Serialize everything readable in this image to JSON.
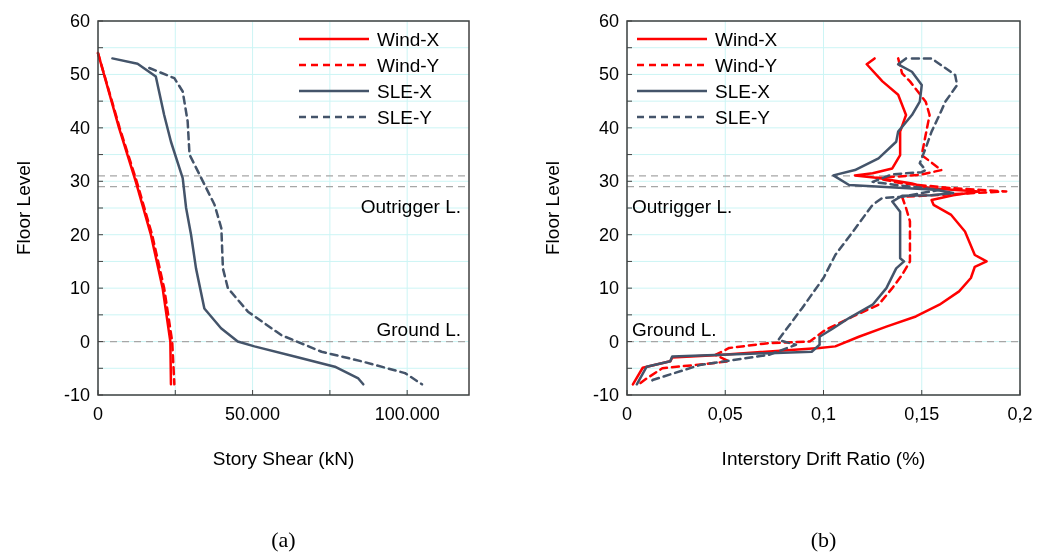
{
  "chart_data": [
    {
      "type": "line",
      "xlabel": "Story Shear (kN)",
      "ylabel": "Floor Level",
      "annotations": [
        "(a)"
      ],
      "legend": "top right",
      "grid": true,
      "xlim": [
        0,
        120000
      ],
      "xticks": [
        0,
        {
          "value": 25000,
          "label": null
        },
        {
          "value": 50000,
          "label": "50.000"
        },
        {
          "value": 75000,
          "label": null
        },
        {
          "value": 100000,
          "label": "100.000"
        }
      ],
      "ylim": [
        -10,
        60
      ],
      "yticks": [
        -10,
        {
          "value": -5,
          "label": null
        },
        0,
        {
          "value": 5,
          "label": null
        },
        10,
        {
          "value": 15,
          "label": null
        },
        20,
        {
          "value": 25,
          "label": null
        },
        30,
        {
          "value": 35,
          "label": null
        },
        40,
        {
          "value": 45,
          "label": null
        },
        50,
        {
          "value": 55,
          "label": null
        },
        60
      ],
      "ref_lines": [
        {
          "axis": "y",
          "value": 31,
          "color": "#a6a6a6",
          "line_style": "dashed"
        },
        {
          "axis": "y",
          "value": 29,
          "label": "Outrigger L.",
          "color": "#a6a6a6",
          "line_style": "dashed"
        },
        {
          "axis": "y",
          "value": 0,
          "label": "Ground L.",
          "color": "#a6a6a6",
          "line_style": "dashed"
        }
      ],
      "series": [
        {
          "name": "Wind-X",
          "color": "#ff0000",
          "line_style": "solid",
          "x": [
            0,
            6800,
            12200,
            17100,
            20900,
            23400,
            23600
          ],
          "values": [
            54,
            40,
            30,
            20,
            10,
            0,
            -8
          ]
        },
        {
          "name": "Wind-Y",
          "color": "#ff0000",
          "line_style": "dashed",
          "x": [
            0,
            7000,
            12500,
            17500,
            21400,
            24000,
            24700
          ],
          "values": [
            54,
            40,
            30,
            20,
            10,
            0,
            -8
          ]
        },
        {
          "name": "SLE-X",
          "color": "#44546a",
          "line_style": "solid",
          "x": [
            4650,
            12800,
            18700,
            21400,
            23600,
            27400,
            28500,
            30100,
            31700,
            34400,
            39800,
            45200,
            50600,
            63600,
            76600,
            84200,
            85800
          ],
          "values": [
            53,
            52,
            49.6,
            42.4,
            37.4,
            30.6,
            25,
            20,
            13.7,
            6.2,
            2.5,
            0,
            -0.9,
            -2.8,
            -4.7,
            -6.9,
            -8
          ]
        },
        {
          "name": "SLE-Y",
          "color": "#44546a",
          "line_style": "dashed",
          "x": [
            16600,
            24700,
            27400,
            29000,
            29600,
            33400,
            37700,
            39900,
            40400,
            42000,
            48500,
            59300,
            72300,
            85300,
            99300,
            104800
          ],
          "values": [
            51.2,
            49.3,
            46.8,
            41.2,
            35,
            30.6,
            25.6,
            21.2,
            13.7,
            10,
            5.6,
            1.2,
            -1.9,
            -3.7,
            -5.9,
            -8
          ]
        }
      ]
    },
    {
      "type": "line",
      "xlabel": "Interstory Drift Ratio (%)",
      "ylabel": "Floor Level",
      "annotations": [
        "(b)"
      ],
      "legend": "top left",
      "grid": true,
      "xlim": [
        0,
        0.2
      ],
      "xticks": [
        0,
        {
          "value": 0.05,
          "label": "0,05"
        },
        {
          "value": 0.1,
          "label": "0,1"
        },
        {
          "value": 0.15,
          "label": "0,15"
        },
        {
          "value": 0.2,
          "label": "0,2"
        }
      ],
      "ylim": [
        -10,
        60
      ],
      "yticks": [
        -10,
        {
          "value": -5,
          "label": null
        },
        0,
        {
          "value": 5,
          "label": null
        },
        10,
        {
          "value": 15,
          "label": null
        },
        20,
        {
          "value": 25,
          "label": null
        },
        30,
        {
          "value": 35,
          "label": null
        },
        40,
        {
          "value": 45,
          "label": null
        },
        50,
        {
          "value": 55,
          "label": null
        },
        60
      ],
      "ref_lines": [
        {
          "axis": "y",
          "value": 31,
          "color": "#a6a6a6",
          "line_style": "dashed"
        },
        {
          "axis": "y",
          "value": 29,
          "label": "Outrigger L.",
          "color": "#a6a6a6",
          "line_style": "dashed"
        },
        {
          "axis": "y",
          "value": 0,
          "label": "Ground L.",
          "color": "#a6a6a6",
          "line_style": "dashed"
        }
      ],
      "series": [
        {
          "name": "Wind-X",
          "color": "#ff0000",
          "line_style": "solid",
          "x": [
            0.126,
            0.122,
            0.13,
            0.138,
            0.142,
            0.139,
            0.139,
            0.135,
            0.125,
            0.116,
            0.128,
            0.145,
            0.154,
            0.179,
            0.166,
            0.155,
            0.156,
            0.165,
            0.172,
            0.177,
            0.183,
            0.177,
            0.175,
            0.169,
            0.159,
            0.147,
            0.132,
            0.118,
            0.106,
            0.098,
            0.047,
            0.023,
            0.022,
            0.008,
            0.003
          ],
          "values": [
            53,
            51.9,
            48.7,
            46.2,
            42.4,
            39.3,
            34.9,
            32.4,
            31.5,
            31.1,
            30.6,
            29.6,
            28.7,
            28.1,
            27.4,
            26.5,
            25.6,
            23.7,
            20.6,
            16.2,
            15,
            14,
            11.9,
            9.4,
            6.9,
            4.7,
            2.8,
            0.9,
            -0.9,
            -1.2,
            -2.5,
            -3,
            -3.7,
            -4.9,
            -8
          ]
        },
        {
          "name": "Wind-Y",
          "color": "#ff0000",
          "line_style": "dashed",
          "x": [
            0.138,
            0.14,
            0.144,
            0.152,
            0.154,
            0.152,
            0.15,
            0.16,
            0.149,
            0.127,
            0.14,
            0.166,
            0.193,
            0.166,
            0.14,
            0.142,
            0.144,
            0.144,
            0.14,
            0.135,
            0.128,
            0.115,
            0.101,
            0.093,
            0.072,
            0.052,
            0.045,
            0.052,
            0.042,
            0.018,
            0.01,
            0.006
          ],
          "values": [
            53,
            50.2,
            48.7,
            44.9,
            42.4,
            38.7,
            34.9,
            32.1,
            31.2,
            30.6,
            29.6,
            28.7,
            28.1,
            27.6,
            27.1,
            25,
            22.5,
            15,
            12.5,
            10,
            6.9,
            4.7,
            2.2,
            0,
            -0.3,
            -1.2,
            -2.5,
            -3.7,
            -4.1,
            -5,
            -6.9,
            -8
          ]
        },
        {
          "name": "SLE-X",
          "color": "#44546a",
          "line_style": "solid",
          "x": [
            0.142,
            0.138,
            0.145,
            0.15,
            0.149,
            0.145,
            0.138,
            0.137,
            0.128,
            0.116,
            0.105,
            0.113,
            0.157,
            0.166,
            0.155,
            0.14,
            0.135,
            0.139,
            0.139,
            0.141,
            0.137,
            0.132,
            0.125,
            0.113,
            0.105,
            0.098,
            0.098,
            0.094,
            0.023,
            0.022,
            0.01,
            0.005
          ],
          "values": [
            53,
            51.9,
            50.5,
            48,
            44.9,
            42.4,
            39.3,
            37.4,
            34.3,
            32.1,
            31.1,
            29.3,
            28.4,
            27.8,
            27.4,
            27.3,
            26.2,
            24.3,
            15.6,
            15,
            13.7,
            10,
            6.9,
            4.4,
            2.5,
            0.9,
            -0.6,
            -1.9,
            -2.8,
            -3.7,
            -4.7,
            -8
          ]
        },
        {
          "name": "SLE-Y",
          "color": "#44546a",
          "line_style": "dashed",
          "x": [
            0.145,
            0.155,
            0.167,
            0.168,
            0.162,
            0.159,
            0.155,
            0.152,
            0.149,
            0.152,
            0.15,
            0.135,
            0.125,
            0.137,
            0.159,
            0.14,
            0.13,
            0.125,
            0.115,
            0.106,
            0.1,
            0.089,
            0.077,
            0.086,
            0.072,
            0.037,
            0.013,
            0.012
          ],
          "values": [
            53,
            53,
            49.9,
            48,
            44.9,
            42.4,
            39.3,
            36.2,
            33.4,
            32.1,
            31.7,
            31.3,
            29.9,
            29.3,
            28.4,
            27.1,
            26.9,
            25.6,
            20.6,
            16.2,
            11.9,
            6.2,
            0.3,
            -0.6,
            -2.5,
            -4.4,
            -7.2,
            -8
          ]
        }
      ]
    }
  ]
}
